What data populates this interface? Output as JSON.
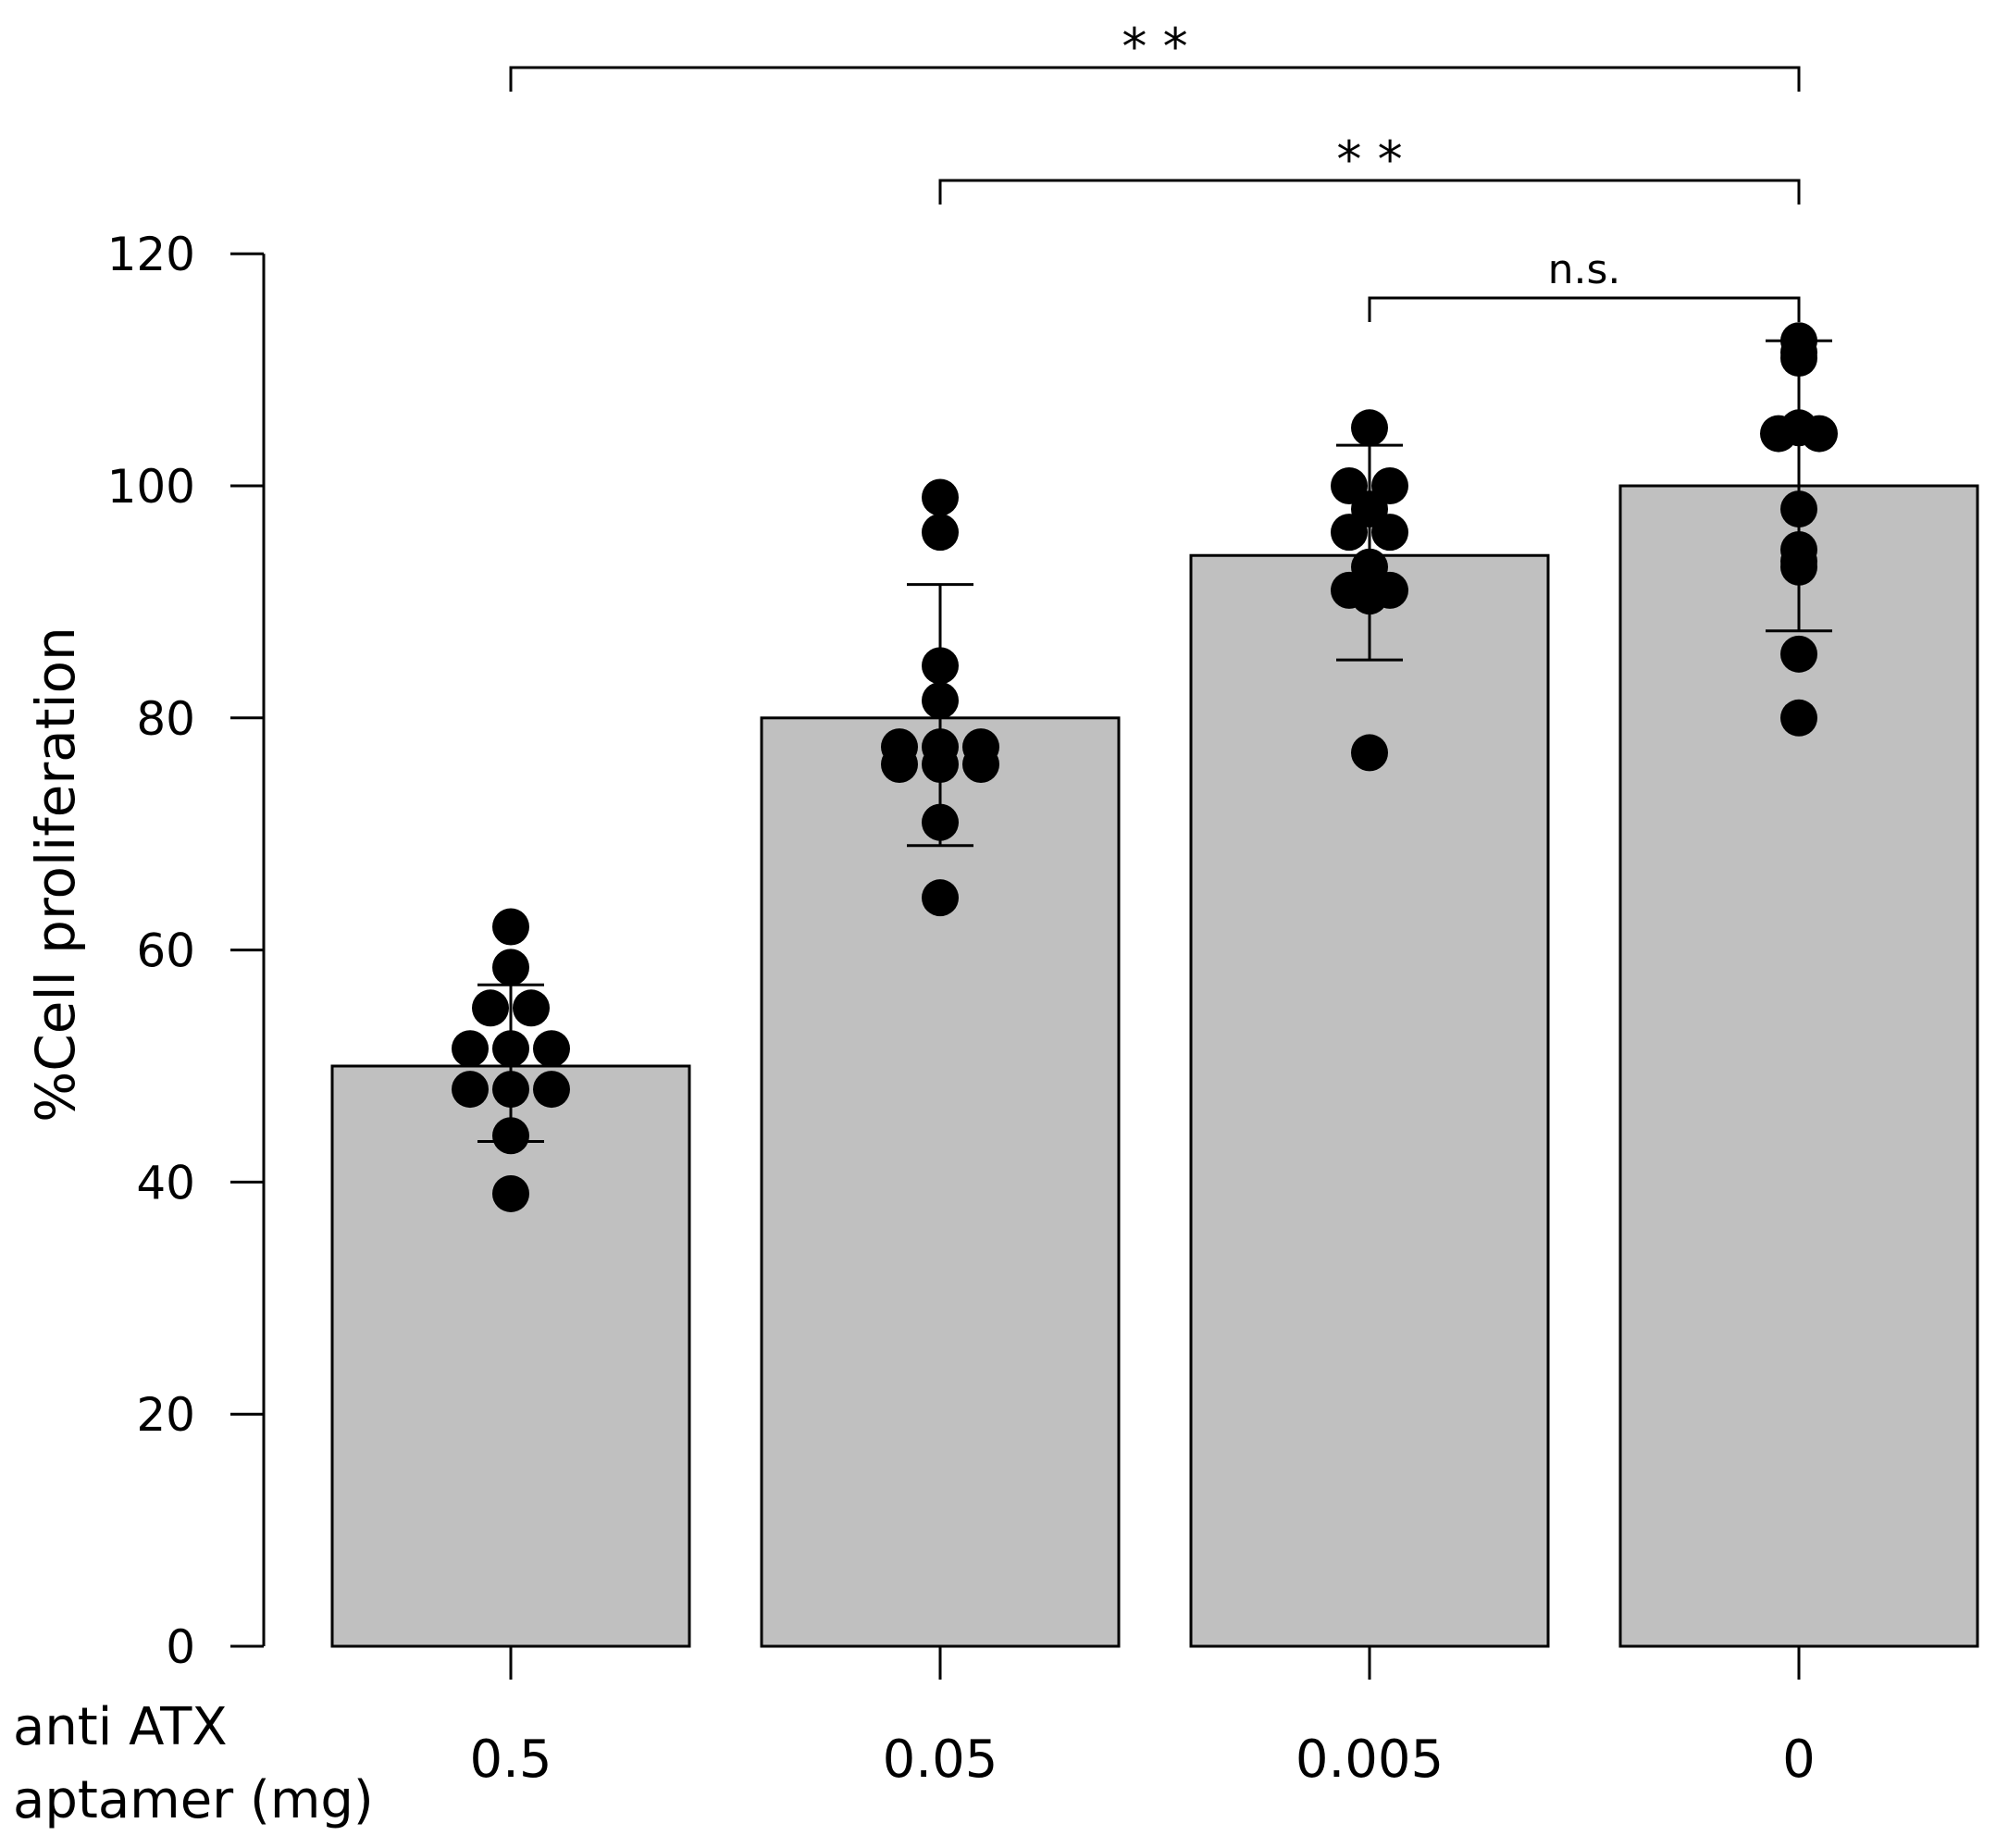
{
  "chart_data": {
    "type": "bar",
    "title": "",
    "xlabel": "anti ATX aptamer (mg)",
    "xlabel_lines": [
      "anti ATX",
      "aptamer (mg)"
    ],
    "ylabel": "%Cell proliferation",
    "ylim": [
      0,
      120
    ],
    "yticks": [
      "0",
      "20",
      "40",
      "60",
      "80",
      "100",
      "120"
    ],
    "categories": [
      "0.5",
      "0.05",
      "0.005",
      "0"
    ],
    "values": [
      50,
      80,
      94,
      100
    ],
    "error_bars": [
      {
        "low": 43.5,
        "high": 57
      },
      {
        "low": 69,
        "high": 91.5
      },
      {
        "low": 85,
        "high": 103.5
      },
      {
        "low": 87.5,
        "high": 112.5
      }
    ],
    "points": [
      [
        62,
        58.5,
        55,
        55,
        51.5,
        51.5,
        51.5,
        48,
        48,
        48,
        44,
        39
      ],
      [
        99,
        96,
        84.5,
        81.5,
        77.5,
        77.5,
        76,
        76,
        76,
        77.5,
        71,
        64.5
      ],
      [
        105,
        100,
        100,
        98,
        96,
        96,
        93,
        91.5,
        91,
        91,
        90.5,
        77
      ],
      [
        112.5,
        111.5,
        111,
        105,
        104.5,
        104.5,
        98,
        94.5,
        93.5,
        93,
        85.5,
        80
      ]
    ],
    "bar_color": "#c0c0c0",
    "point_color": "#000000",
    "significance": [
      {
        "from": "0.5",
        "to": "0",
        "label": "* *"
      },
      {
        "from": "0.05",
        "to": "0",
        "label": "* *"
      },
      {
        "from": "0.005",
        "to": "0",
        "label": "n.s."
      }
    ]
  }
}
